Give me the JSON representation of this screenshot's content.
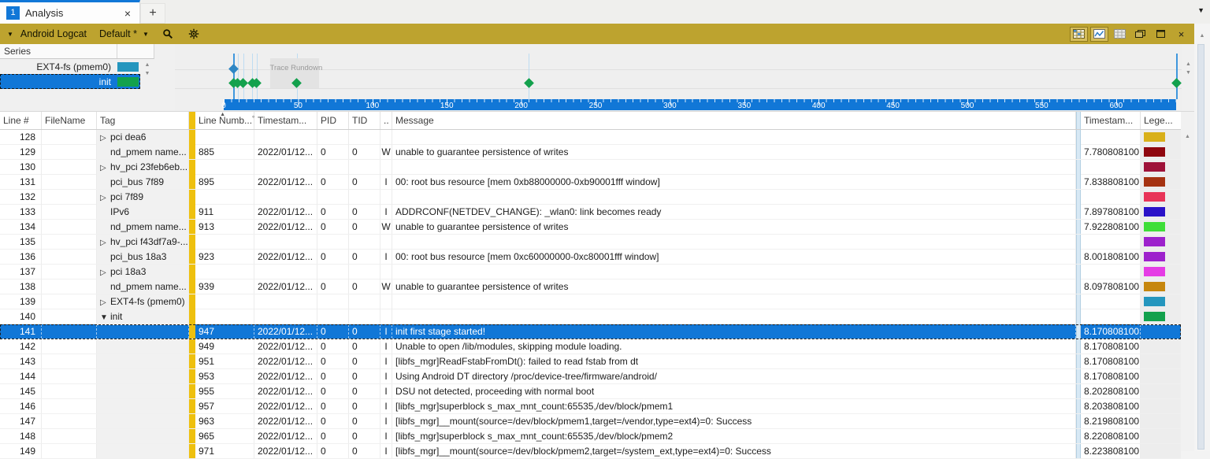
{
  "tabs": {
    "active_badge": "1",
    "active_label": "Analysis",
    "close_glyph": "×",
    "new_tab_glyph": "+",
    "overflow_glyph": "▼"
  },
  "toolbar": {
    "expander_glyph": "▼",
    "title": "Android Logcat",
    "preset": "Default *",
    "preset_chevron": "▼",
    "close_glyph": "×"
  },
  "series_panel": {
    "header": "Series",
    "items": [
      {
        "label": "EXT4-fs (pmem0)",
        "color": "#2596be",
        "selected": false
      },
      {
        "label": "init",
        "color": "#13a14d",
        "selected": true
      }
    ],
    "up_glyph": "▲",
    "down_glyph": "▼"
  },
  "graph": {
    "rundown_label": "Trace Rundown",
    "axis_ticks": [
      0,
      50,
      100,
      150,
      200,
      250,
      300,
      350,
      400,
      450,
      500,
      550,
      600
    ],
    "markers": [
      {
        "series": "ext4",
        "t": 6.4
      },
      {
        "series": "init",
        "t": 6.4
      },
      {
        "series": "init",
        "t": 9.5
      },
      {
        "series": "init",
        "t": 13.2
      },
      {
        "series": "init",
        "t": 19.1
      },
      {
        "series": "init",
        "t": 22.2
      },
      {
        "series": "init",
        "t": 49
      },
      {
        "series": "init",
        "t": 205
      },
      {
        "series": "init",
        "t": 640.5
      }
    ],
    "vlines": [
      {
        "t": 6.4,
        "w": "strong"
      },
      {
        "t": 9.5,
        "w": "light"
      },
      {
        "t": 13.2,
        "w": "light"
      },
      {
        "t": 19.1,
        "w": "light"
      },
      {
        "t": 22.2,
        "w": "light"
      },
      {
        "t": 49,
        "w": "light"
      },
      {
        "t": 205,
        "w": "light"
      },
      {
        "t": 640.5,
        "w": "strong"
      }
    ]
  },
  "table": {
    "headers": {
      "line": "Line #",
      "filename": "FileName",
      "tag": "Tag",
      "line_number": "Line Numb...",
      "sort_icon": "▲",
      "sort_order": "°",
      "timestamp": "Timestam...",
      "pid": "PID",
      "tid": "TID",
      "level": "..",
      "message": "Message",
      "timestamp2": "Timestam...",
      "legend": "Lege..."
    },
    "rows": [
      {
        "line": "128",
        "arrow": "▷",
        "tag": "pci dea6",
        "line_number": "",
        "timestamp": "",
        "pid": "",
        "tid": "",
        "level": "",
        "message": "",
        "timestamp2": "",
        "legend": "#d9b019",
        "selected": false
      },
      {
        "line": "129",
        "arrow": "",
        "tag": "nd_pmem name...",
        "line_number": "885",
        "timestamp": "2022/01/12...",
        "pid": "0",
        "tid": "0",
        "level": "W",
        "message": "unable to guarantee persistence of writes",
        "timestamp2": "7.780808100",
        "legend": "#8f070f",
        "selected": false
      },
      {
        "line": "130",
        "arrow": "▷",
        "tag": "hv_pci 23feb6eb...",
        "line_number": "",
        "timestamp": "",
        "pid": "",
        "tid": "",
        "level": "",
        "message": "",
        "timestamp2": "",
        "legend": "#9e1239",
        "selected": false
      },
      {
        "line": "131",
        "arrow": "",
        "tag": "pci_bus 7f89",
        "line_number": "895",
        "timestamp": "2022/01/12...",
        "pid": "0",
        "tid": "0",
        "level": "I",
        "message": "00: root bus resource [mem 0xb88000000-0xb90001fff window]",
        "timestamp2": "7.838808100",
        "legend": "#a53312",
        "selected": false
      },
      {
        "line": "132",
        "arrow": "▷",
        "tag": "pci 7f89",
        "line_number": "",
        "timestamp": "",
        "pid": "",
        "tid": "",
        "level": "",
        "message": "",
        "timestamp2": "",
        "legend": "#e83458",
        "selected": false
      },
      {
        "line": "133",
        "arrow": "",
        "tag": "IPv6",
        "line_number": "911",
        "timestamp": "2022/01/12...",
        "pid": "0",
        "tid": "0",
        "level": "I",
        "message": "ADDRCONF(NETDEV_CHANGE): _wlan0: link becomes ready",
        "timestamp2": "7.897808100",
        "legend": "#2a12c8",
        "selected": false
      },
      {
        "line": "134",
        "arrow": "",
        "tag": "nd_pmem name...",
        "line_number": "913",
        "timestamp": "2022/01/12...",
        "pid": "0",
        "tid": "0",
        "level": "W",
        "message": "unable to guarantee persistence of writes",
        "timestamp2": "7.922808100",
        "legend": "#3ede38",
        "selected": false
      },
      {
        "line": "135",
        "arrow": "▷",
        "tag": "hv_pci f43df7a9-...",
        "line_number": "",
        "timestamp": "",
        "pid": "",
        "tid": "",
        "level": "",
        "message": "",
        "timestamp2": "",
        "legend": "#9d22cc",
        "selected": false
      },
      {
        "line": "136",
        "arrow": "",
        "tag": "pci_bus 18a3",
        "line_number": "923",
        "timestamp": "2022/01/12...",
        "pid": "0",
        "tid": "0",
        "level": "I",
        "message": "00: root bus resource [mem 0xc60000000-0xc80001fff window]",
        "timestamp2": "8.001808100",
        "legend": "#9d22cc",
        "selected": false
      },
      {
        "line": "137",
        "arrow": "▷",
        "tag": "pci 18a3",
        "line_number": "",
        "timestamp": "",
        "pid": "",
        "tid": "",
        "level": "",
        "message": "",
        "timestamp2": "",
        "legend": "#e53ce5",
        "selected": false
      },
      {
        "line": "138",
        "arrow": "",
        "tag": "nd_pmem name...",
        "line_number": "939",
        "timestamp": "2022/01/12...",
        "pid": "0",
        "tid": "0",
        "level": "W",
        "message": "unable to guarantee persistence of writes",
        "timestamp2": "8.097808100",
        "legend": "#c6860d",
        "selected": false
      },
      {
        "line": "139",
        "arrow": "▷",
        "tag": "EXT4-fs (pmem0)",
        "line_number": "",
        "timestamp": "",
        "pid": "",
        "tid": "",
        "level": "",
        "message": "",
        "timestamp2": "",
        "legend": "#2596be",
        "selected": false
      },
      {
        "line": "140",
        "arrow": "▼",
        "tag": "init",
        "line_number": "",
        "timestamp": "",
        "pid": "",
        "tid": "",
        "level": "",
        "message": "",
        "timestamp2": "",
        "legend": "#13a14d",
        "selected": false
      },
      {
        "line": "141",
        "arrow": "",
        "tag": "",
        "line_number": "947",
        "timestamp": "2022/01/12...",
        "pid": "0",
        "tid": "0",
        "level": "I",
        "message": "init first stage started!",
        "timestamp2": "8.170808100",
        "legend": "",
        "selected": true
      },
      {
        "line": "142",
        "arrow": "",
        "tag": "",
        "line_number": "949",
        "timestamp": "2022/01/12...",
        "pid": "0",
        "tid": "0",
        "level": "I",
        "message": "Unable to open /lib/modules, skipping module loading.",
        "timestamp2": "8.170808100",
        "legend": "",
        "selected": false
      },
      {
        "line": "143",
        "arrow": "",
        "tag": "",
        "line_number": "951",
        "timestamp": "2022/01/12...",
        "pid": "0",
        "tid": "0",
        "level": "I",
        "message": "[libfs_mgr]ReadFstabFromDt(): failed to read fstab from dt",
        "timestamp2": "8.170808100",
        "legend": "",
        "selected": false
      },
      {
        "line": "144",
        "arrow": "",
        "tag": "",
        "line_number": "953",
        "timestamp": "2022/01/12...",
        "pid": "0",
        "tid": "0",
        "level": "I",
        "message": "Using Android DT directory /proc/device-tree/firmware/android/",
        "timestamp2": "8.170808100",
        "legend": "",
        "selected": false
      },
      {
        "line": "145",
        "arrow": "",
        "tag": "",
        "line_number": "955",
        "timestamp": "2022/01/12...",
        "pid": "0",
        "tid": "0",
        "level": "I",
        "message": "DSU not detected, proceeding with normal boot",
        "timestamp2": "8.202808100",
        "legend": "",
        "selected": false
      },
      {
        "line": "146",
        "arrow": "",
        "tag": "",
        "line_number": "957",
        "timestamp": "2022/01/12...",
        "pid": "0",
        "tid": "0",
        "level": "I",
        "message": "[libfs_mgr]superblock s_max_mnt_count:65535,/dev/block/pmem1",
        "timestamp2": "8.203808100",
        "legend": "",
        "selected": false
      },
      {
        "line": "147",
        "arrow": "",
        "tag": "",
        "line_number": "963",
        "timestamp": "2022/01/12...",
        "pid": "0",
        "tid": "0",
        "level": "I",
        "message": "[libfs_mgr]__mount(source=/dev/block/pmem1,target=/vendor,type=ext4)=0: Success",
        "timestamp2": "8.219808100",
        "legend": "",
        "selected": false
      },
      {
        "line": "148",
        "arrow": "",
        "tag": "",
        "line_number": "965",
        "timestamp": "2022/01/12...",
        "pid": "0",
        "tid": "0",
        "level": "I",
        "message": "[libfs_mgr]superblock s_max_mnt_count:65535,/dev/block/pmem2",
        "timestamp2": "8.220808100",
        "legend": "",
        "selected": false
      },
      {
        "line": "149",
        "arrow": "",
        "tag": "",
        "line_number": "971",
        "timestamp": "2022/01/12...",
        "pid": "0",
        "tid": "0",
        "level": "I",
        "message": "[libfs_mgr]__mount(source=/dev/block/pmem2,target=/system_ext,type=ext4)=0: Success",
        "timestamp2": "8.223808100",
        "legend": "",
        "selected": false
      }
    ]
  }
}
